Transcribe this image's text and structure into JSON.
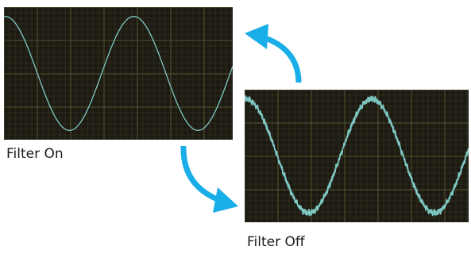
{
  "panels": {
    "filter_on": {
      "caption": "Filter On"
    },
    "filter_off": {
      "caption": "Filter Off"
    }
  },
  "colors": {
    "screen_background": "#1c1a12",
    "grid_minor": "#3a3a24",
    "grid_major": "#55552e",
    "trace": "#7fc8c4",
    "arrow": "#1aaee8",
    "caption_text": "#1a1a1a"
  },
  "icons": {
    "arrow_up": "curved-arrow-up-icon",
    "arrow_down": "curved-arrow-down-icon"
  }
}
